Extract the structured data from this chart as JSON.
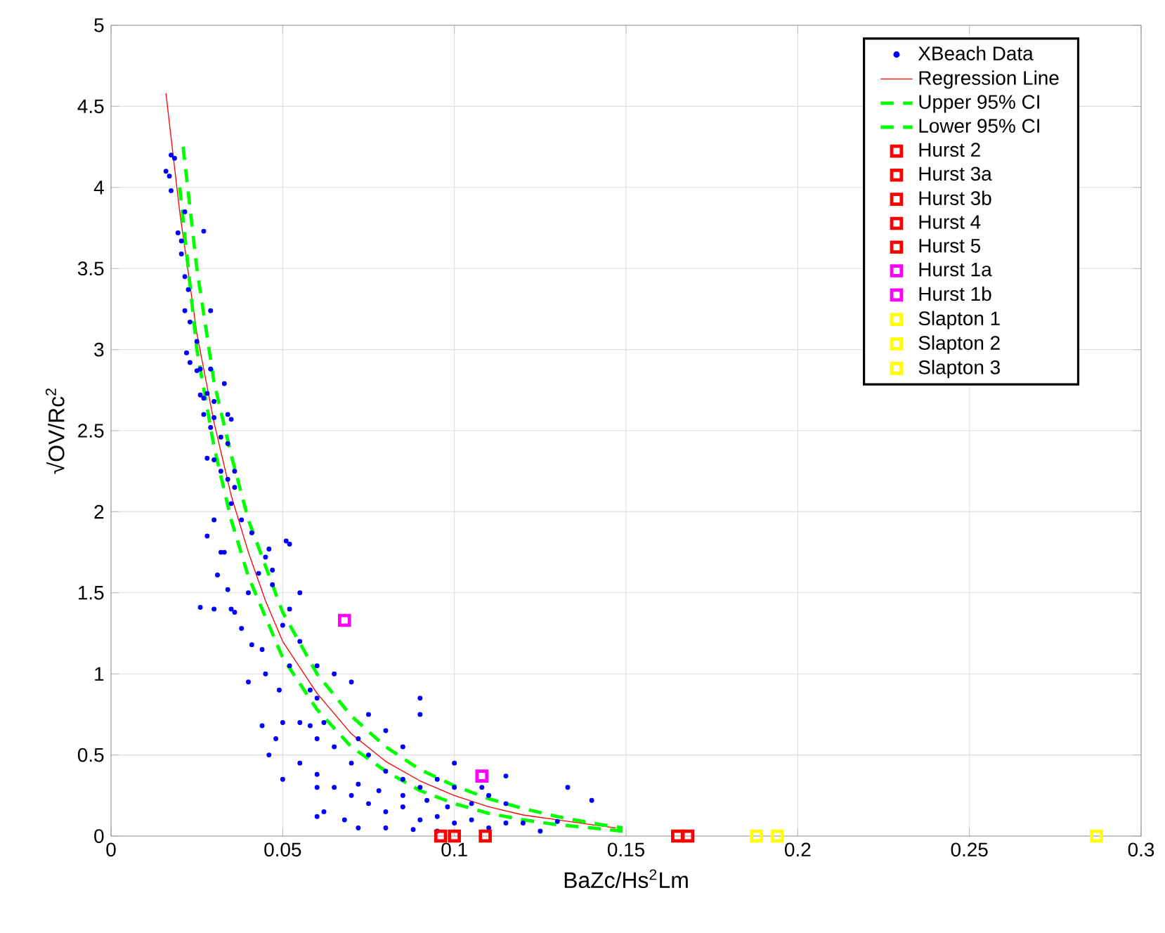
{
  "chart_data": {
    "type": "scatter",
    "xlabel": "BaZc/Hs$^{2}$Lm",
    "ylabel": "√OV/Rc$^{2}$",
    "xlim": [
      0,
      0.3
    ],
    "ylim": [
      0,
      5
    ],
    "xticks": [
      0,
      0.05,
      0.1,
      0.15,
      0.2,
      0.25,
      0.3
    ],
    "yticks": [
      0,
      0.5,
      1,
      1.5,
      2,
      2.5,
      3,
      3.5,
      4,
      4.5,
      5
    ],
    "grid": true,
    "legend": "top right",
    "series": [
      {
        "name": "XBeach Data",
        "type": "scatter",
        "marker": "circle",
        "color": "#0000ff",
        "x": [
          0.0175,
          0.0185,
          0.016,
          0.017,
          0.0175,
          0.0215,
          0.0195,
          0.0205,
          0.0205,
          0.027,
          0.0215,
          0.0225,
          0.0215,
          0.023,
          0.029,
          0.025,
          0.022,
          0.023,
          0.025,
          0.026,
          0.029,
          0.033,
          0.026,
          0.027,
          0.028,
          0.03,
          0.03,
          0.034,
          0.035,
          0.027,
          0.029,
          0.032,
          0.034,
          0.028,
          0.03,
          0.032,
          0.034,
          0.036,
          0.036,
          0.035,
          0.03,
          0.028,
          0.032,
          0.033,
          0.038,
          0.041,
          0.045,
          0.043,
          0.046,
          0.047,
          0.052,
          0.051,
          0.055,
          0.052,
          0.047,
          0.04,
          0.035,
          0.03,
          0.026,
          0.031,
          0.034,
          0.036,
          0.038,
          0.041,
          0.044,
          0.05,
          0.055,
          0.06,
          0.058,
          0.065,
          0.07,
          0.075,
          0.072,
          0.08,
          0.085,
          0.09,
          0.09,
          0.06,
          0.065,
          0.058,
          0.062,
          0.055,
          0.05,
          0.048,
          0.044,
          0.046,
          0.07,
          0.075,
          0.08,
          0.085,
          0.09,
          0.095,
          0.1,
          0.105,
          0.11,
          0.115,
          0.065,
          0.07,
          0.075,
          0.08,
          0.085,
          0.09,
          0.095,
          0.1,
          0.062,
          0.06,
          0.068,
          0.072,
          0.08,
          0.088,
          0.095,
          0.11,
          0.12,
          0.125,
          0.13,
          0.133,
          0.14,
          0.05,
          0.055,
          0.06,
          0.072,
          0.078,
          0.085,
          0.092,
          0.098,
          0.105,
          0.115,
          0.06,
          0.045,
          0.04,
          0.049,
          0.052,
          0.06,
          0.1,
          0.108,
          0.115
        ],
        "values": [
          4.2,
          4.18,
          4.1,
          4.07,
          3.98,
          3.85,
          3.72,
          3.67,
          3.59,
          3.73,
          3.45,
          3.37,
          3.24,
          3.17,
          3.24,
          3.05,
          2.98,
          2.92,
          2.87,
          2.88,
          2.88,
          2.79,
          2.72,
          2.7,
          2.73,
          2.68,
          2.58,
          2.6,
          2.57,
          2.6,
          2.52,
          2.46,
          2.42,
          2.33,
          2.32,
          2.25,
          2.2,
          2.25,
          2.15,
          2.05,
          1.95,
          1.85,
          1.75,
          1.75,
          1.95,
          1.87,
          1.72,
          1.62,
          1.77,
          1.64,
          1.8,
          1.82,
          1.5,
          1.4,
          1.55,
          1.5,
          1.4,
          1.4,
          1.41,
          1.61,
          1.52,
          1.38,
          1.28,
          1.18,
          1.15,
          1.3,
          1.2,
          1.05,
          0.9,
          1.0,
          0.95,
          0.75,
          0.6,
          0.65,
          0.55,
          0.85,
          0.75,
          0.6,
          0.55,
          0.68,
          0.7,
          0.7,
          0.7,
          0.6,
          0.68,
          0.5,
          0.45,
          0.5,
          0.4,
          0.35,
          0.3,
          0.35,
          0.3,
          0.2,
          0.25,
          0.2,
          0.3,
          0.25,
          0.2,
          0.15,
          0.18,
          0.1,
          0.12,
          0.08,
          0.15,
          0.12,
          0.1,
          0.05,
          0.05,
          0.04,
          0.03,
          0.05,
          0.08,
          0.03,
          0.09,
          0.3,
          0.22,
          0.35,
          0.45,
          0.38,
          0.32,
          0.28,
          0.25,
          0.22,
          0.18,
          0.1,
          0.08,
          0.3,
          1.0,
          0.95,
          0.9,
          1.05,
          0.85,
          0.45,
          0.3,
          0.37
        ]
      },
      {
        "name": "Regression Line",
        "type": "line",
        "marker": "none",
        "line_style": "solid",
        "color": "#ff0000",
        "x": [
          0.016,
          0.02,
          0.025,
          0.03,
          0.035,
          0.04,
          0.045,
          0.05,
          0.06,
          0.07,
          0.08,
          0.09,
          0.1,
          0.11,
          0.12,
          0.13,
          0.14,
          0.147
        ],
        "values": [
          4.58,
          3.85,
          3.1,
          2.55,
          2.1,
          1.75,
          1.45,
          1.2,
          0.88,
          0.63,
          0.46,
          0.34,
          0.25,
          0.18,
          0.13,
          0.1,
          0.07,
          0.05
        ]
      },
      {
        "name": "Upper 95% CI",
        "type": "line",
        "marker": "none",
        "line_style": "dashed",
        "color": "#00ff00",
        "x": [
          0.021,
          0.025,
          0.03,
          0.035,
          0.04,
          0.05,
          0.06,
          0.07,
          0.08,
          0.09,
          0.1,
          0.11,
          0.12,
          0.13,
          0.14,
          0.149
        ],
        "values": [
          4.25,
          3.5,
          2.8,
          2.35,
          1.95,
          1.38,
          1.0,
          0.74,
          0.55,
          0.41,
          0.31,
          0.23,
          0.17,
          0.12,
          0.08,
          0.05
        ]
      },
      {
        "name": "Lower 95% CI",
        "type": "line",
        "marker": "none",
        "line_style": "dashed",
        "color": "#00ff00",
        "x": [
          0.02,
          0.025,
          0.03,
          0.035,
          0.04,
          0.05,
          0.06,
          0.07,
          0.08,
          0.09,
          0.1,
          0.11,
          0.12,
          0.13,
          0.14,
          0.149
        ],
        "values": [
          4.0,
          3.0,
          2.4,
          1.95,
          1.6,
          1.1,
          0.78,
          0.55,
          0.4,
          0.28,
          0.2,
          0.14,
          0.1,
          0.07,
          0.05,
          0.03
        ]
      },
      {
        "name": "Hurst 2",
        "type": "scatter",
        "marker": "square",
        "color": "#ff0000",
        "x": [
          0.096
        ],
        "values": [
          0
        ]
      },
      {
        "name": "Hurst 3a",
        "type": "scatter",
        "marker": "square",
        "color": "#ff0000",
        "x": [
          0.1
        ],
        "values": [
          0
        ]
      },
      {
        "name": "Hurst 3b",
        "type": "scatter",
        "marker": "square",
        "color": "#ff0000",
        "x": [
          0.109
        ],
        "values": [
          0
        ]
      },
      {
        "name": "Hurst 4",
        "type": "scatter",
        "marker": "square",
        "color": "#ff0000",
        "x": [
          0.165
        ],
        "values": [
          0
        ]
      },
      {
        "name": "Hurst 5",
        "type": "scatter",
        "marker": "square",
        "color": "#ff0000",
        "x": [
          0.168
        ],
        "values": [
          0
        ]
      },
      {
        "name": "Hurst 1a",
        "type": "scatter",
        "marker": "square",
        "color": "#ff00ff",
        "x": [
          0.068
        ],
        "values": [
          1.33
        ]
      },
      {
        "name": "Hurst 1b",
        "type": "scatter",
        "marker": "square",
        "color": "#ff00ff",
        "x": [
          0.108
        ],
        "values": [
          0.37
        ]
      },
      {
        "name": "Slapton 1",
        "type": "scatter",
        "marker": "square",
        "color": "#ffff00",
        "x": [
          0.188
        ],
        "values": [
          0
        ]
      },
      {
        "name": "Slapton 2",
        "type": "scatter",
        "marker": "square",
        "color": "#ffff00",
        "x": [
          0.194
        ],
        "values": [
          0
        ]
      },
      {
        "name": "Slapton 3",
        "type": "scatter",
        "marker": "square",
        "color": "#ffff00",
        "x": [
          0.287
        ],
        "values": [
          0
        ]
      }
    ]
  }
}
